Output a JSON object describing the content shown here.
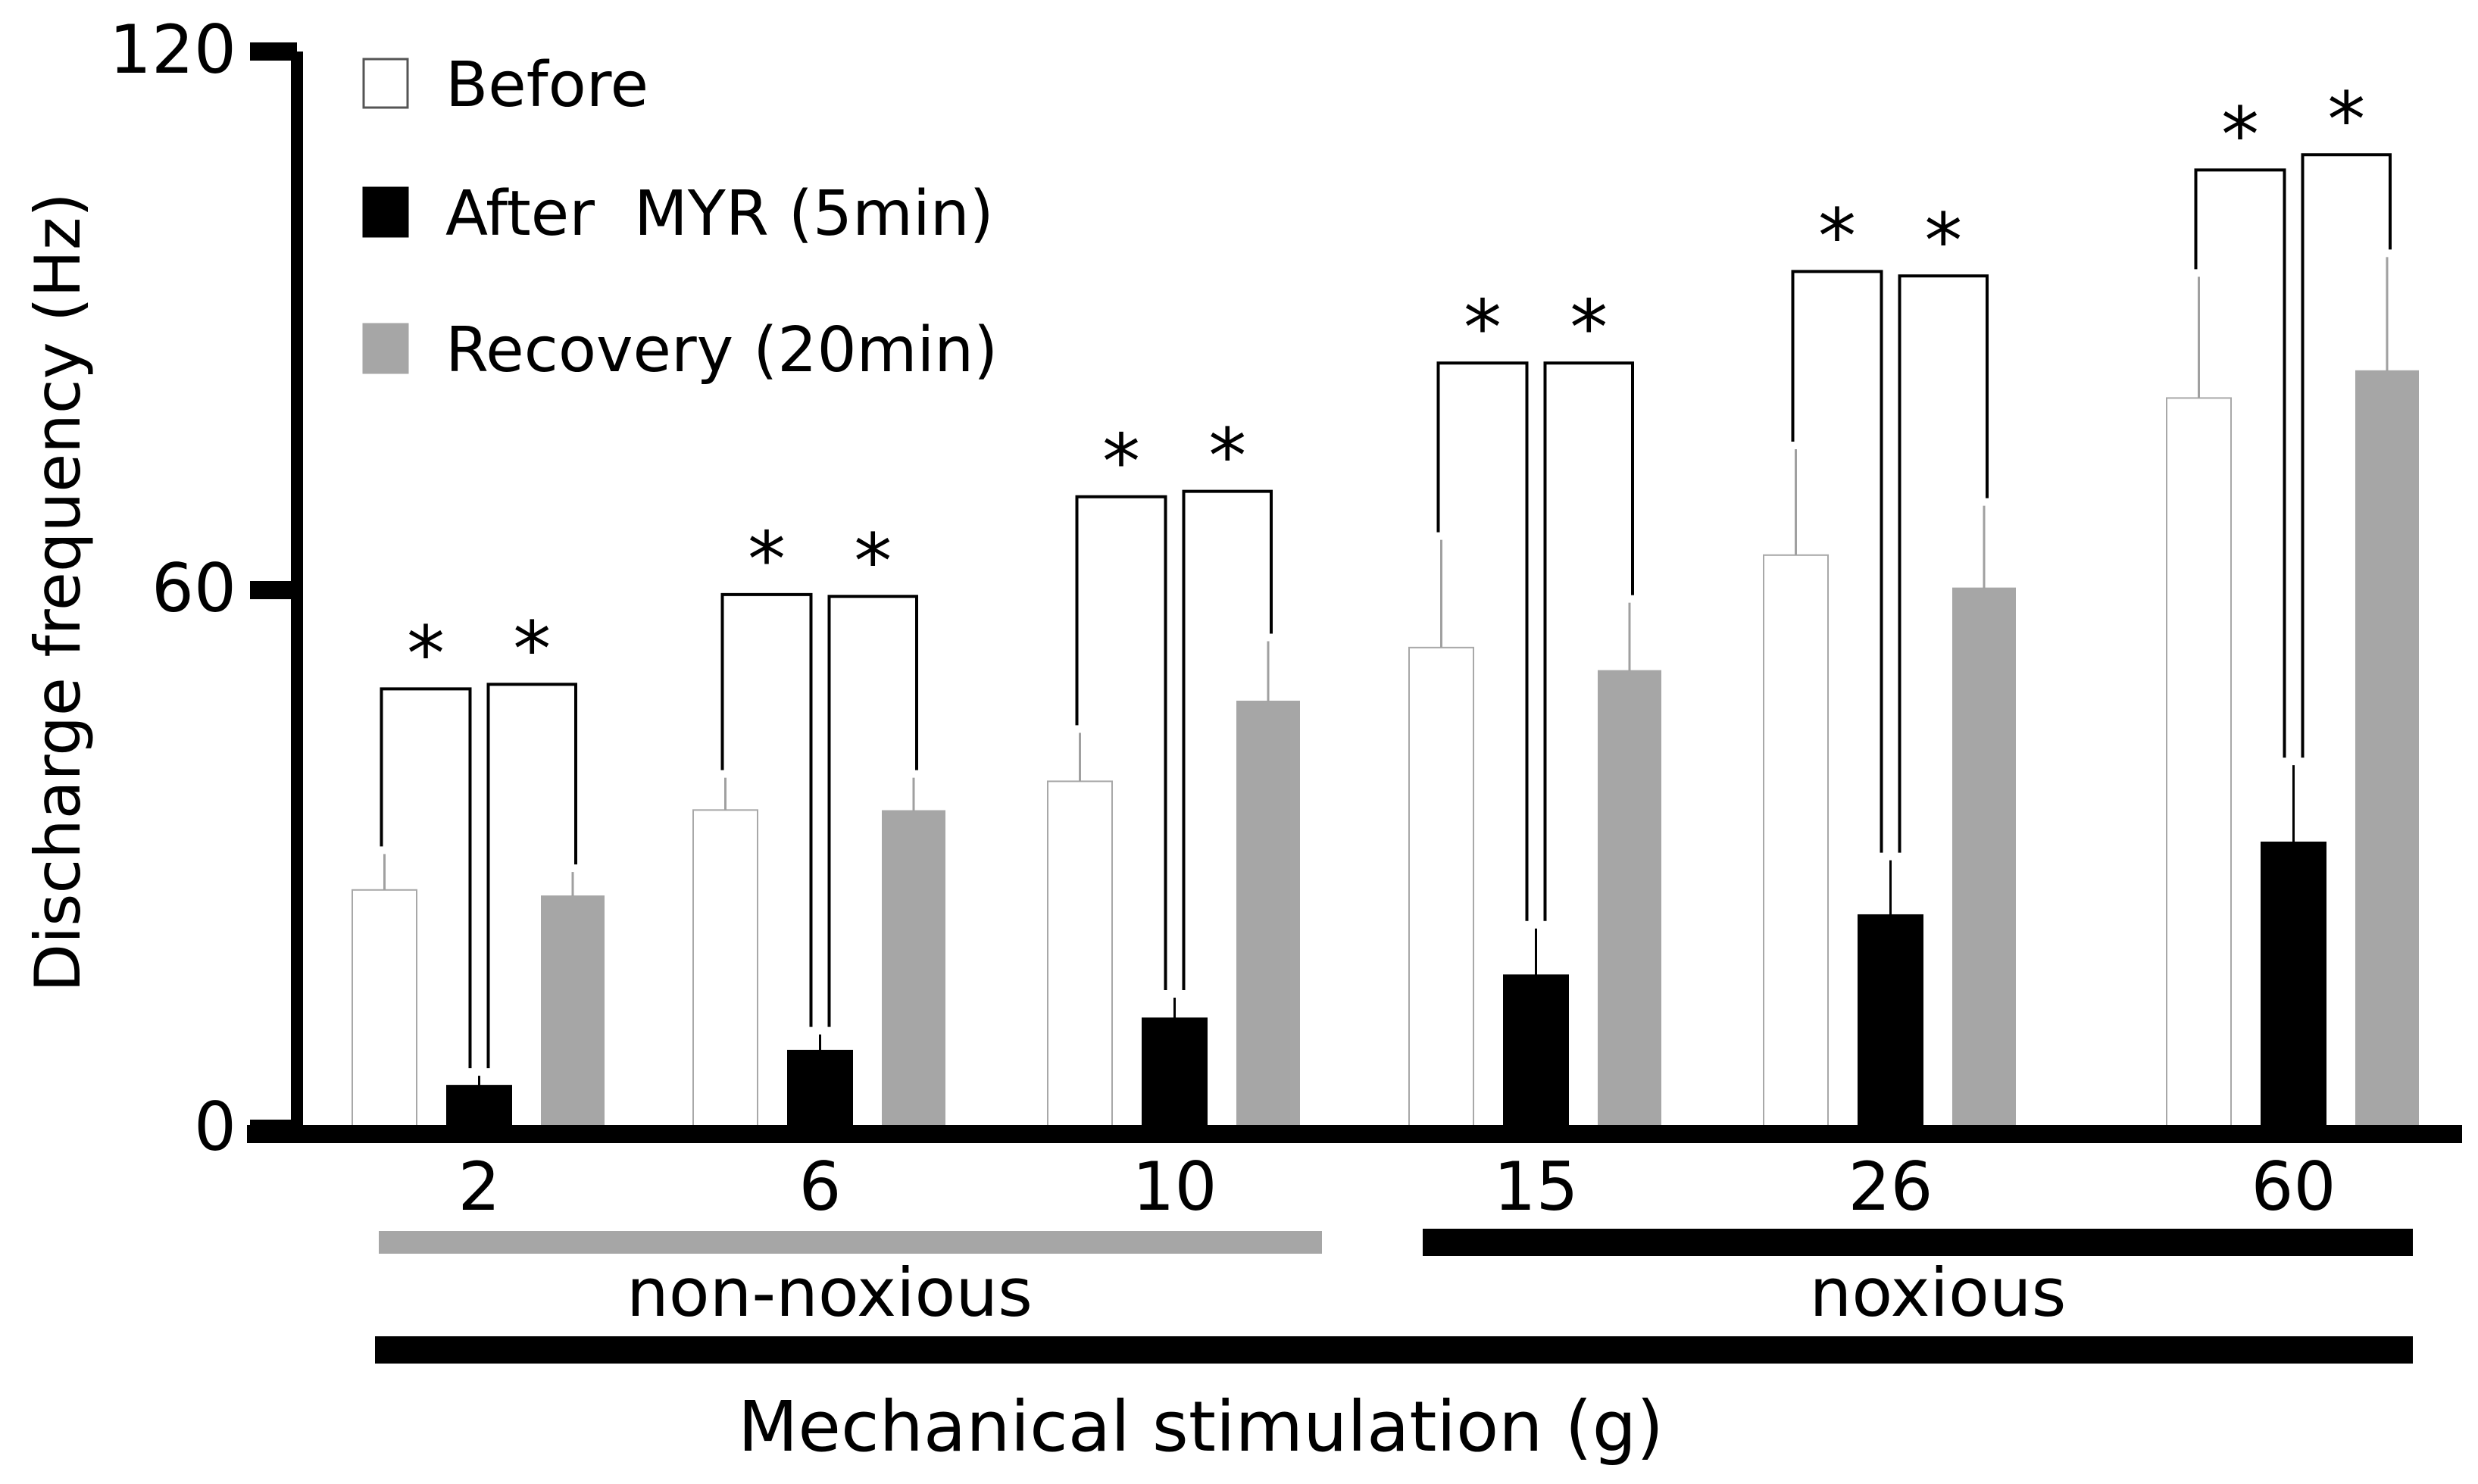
{
  "chart_data": {
    "type": "bar",
    "ylabel": "Discharge frequency (Hz)",
    "xlabel": "Mechanical stimulation (g)",
    "ylim": [
      0,
      120
    ],
    "yticks": [
      "0",
      "60",
      "120"
    ],
    "categories": [
      "2",
      "6",
      "10",
      "15",
      "26",
      "60"
    ],
    "series": [
      {
        "name": "Before",
        "color": "#ffffff",
        "values": [
          26.6,
          35.5,
          38.7,
          53.6,
          63.9,
          81.4
        ],
        "errors": [
          4.0,
          3.6,
          5.4,
          12.0,
          11.8,
          13.5
        ]
      },
      {
        "name": "After  MYR (5min)",
        "color": "#000000",
        "values": [
          4.8,
          8.7,
          12.3,
          17.1,
          23.8,
          31.9
        ],
        "errors": [
          1.1,
          1.8,
          2.3,
          5.2,
          6.1,
          8.6
        ]
      },
      {
        "name": "Recovery (20min)",
        "color": "#a6a6a6",
        "values": [
          25.9,
          35.4,
          47.6,
          51.0,
          60.2,
          84.4
        ],
        "errors": [
          2.7,
          3.7,
          6.7,
          7.6,
          9.2,
          12.7
        ]
      }
    ],
    "significance": [
      {
        "category": "2",
        "label": "*",
        "pair": "Before-After",
        "level": 49.0
      },
      {
        "category": "2",
        "label": "*",
        "pair": "After-Recovery",
        "level": 49.5
      },
      {
        "category": "6",
        "label": "*",
        "pair": "Before-After",
        "level": 59.5
      },
      {
        "category": "6",
        "label": "*",
        "pair": "After-Recovery",
        "level": 59.3
      },
      {
        "category": "10",
        "label": "*",
        "pair": "Before-After",
        "level": 70.4
      },
      {
        "category": "10",
        "label": "*",
        "pair": "After-Recovery",
        "level": 71.0
      },
      {
        "category": "15",
        "label": "*",
        "pair": "Before-After",
        "level": 85.3
      },
      {
        "category": "15",
        "label": "*",
        "pair": "After-Recovery",
        "level": 85.3
      },
      {
        "category": "26",
        "label": "*",
        "pair": "Before-After",
        "level": 95.5
      },
      {
        "category": "26",
        "label": "*",
        "pair": "After-Recovery",
        "level": 95.0
      },
      {
        "category": "60",
        "label": "*",
        "pair": "Before-After",
        "level": 106.8
      },
      {
        "category": "60",
        "label": "*",
        "pair": "After-Recovery",
        "level": 108.5
      }
    ],
    "groups": [
      {
        "label": "non-noxious",
        "color": "#a6a6a6",
        "from": "2",
        "to": "10"
      },
      {
        "label": "noxious",
        "color": "#000000",
        "from": "15",
        "to": "60"
      }
    ],
    "legend": "top-left"
  }
}
